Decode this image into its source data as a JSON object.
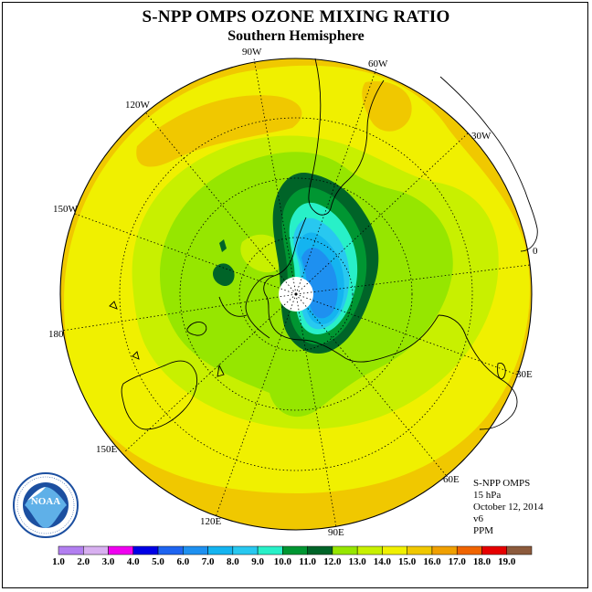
{
  "title": "S-NPP OMPS OZONE MIXING RATIO",
  "subtitle": "Southern Hemisphere",
  "longitude_labels": {
    "lon_90w": "90W",
    "lon_60w": "60W",
    "lon_30w": "30W",
    "lon_0": "0",
    "lon_30e": "30E",
    "lon_60e": "60E",
    "lon_90e": "90E",
    "lon_120e": "120E",
    "lon_150e": "150E",
    "lon_180": "180",
    "lon_150w": "150W",
    "lon_120w": "120W"
  },
  "info": {
    "instrument": "S-NPP OMPS",
    "level": "15 hPa",
    "date": "October 12, 2014",
    "version": "v6",
    "units": "PPM"
  },
  "logo_text": "NOAA",
  "legend": {
    "labels": [
      "1.0",
      "2.0",
      "3.0",
      "4.0",
      "5.0",
      "6.0",
      "7.0",
      "8.0",
      "9.0",
      "10.0",
      "11.0",
      "12.0",
      "13.0",
      "14.0",
      "15.0",
      "16.0",
      "17.0",
      "18.0",
      "19.0"
    ],
    "colors": [
      "#b27ff0",
      "#d8b0f0",
      "#f000f0",
      "#0000e6",
      "#1e64f0",
      "#1e90f0",
      "#14b4f0",
      "#28c8f0",
      "#28f0c8",
      "#009632",
      "#006428",
      "#96e600",
      "#c8f000",
      "#f0f000",
      "#f0c800",
      "#f0a000",
      "#f06400",
      "#e60000",
      "#8c5a3c"
    ]
  },
  "chart_data": {
    "type": "polar-stereographic-contour-map",
    "hemisphere": "Southern",
    "field": "ozone mixing ratio",
    "pressure_level": "15 hPa",
    "units": "PPM",
    "date": "October 12, 2014",
    "contour_levels": [
      1.0,
      2.0,
      3.0,
      4.0,
      5.0,
      6.0,
      7.0,
      8.0,
      9.0,
      10.0,
      11.0,
      12.0,
      13.0,
      14.0,
      15.0,
      16.0,
      17.0,
      18.0,
      19.0
    ],
    "ozone_hole_minimum_range": [
      5.0,
      6.0
    ],
    "outer_ring_range": [
      15.0,
      16.0
    ]
  }
}
